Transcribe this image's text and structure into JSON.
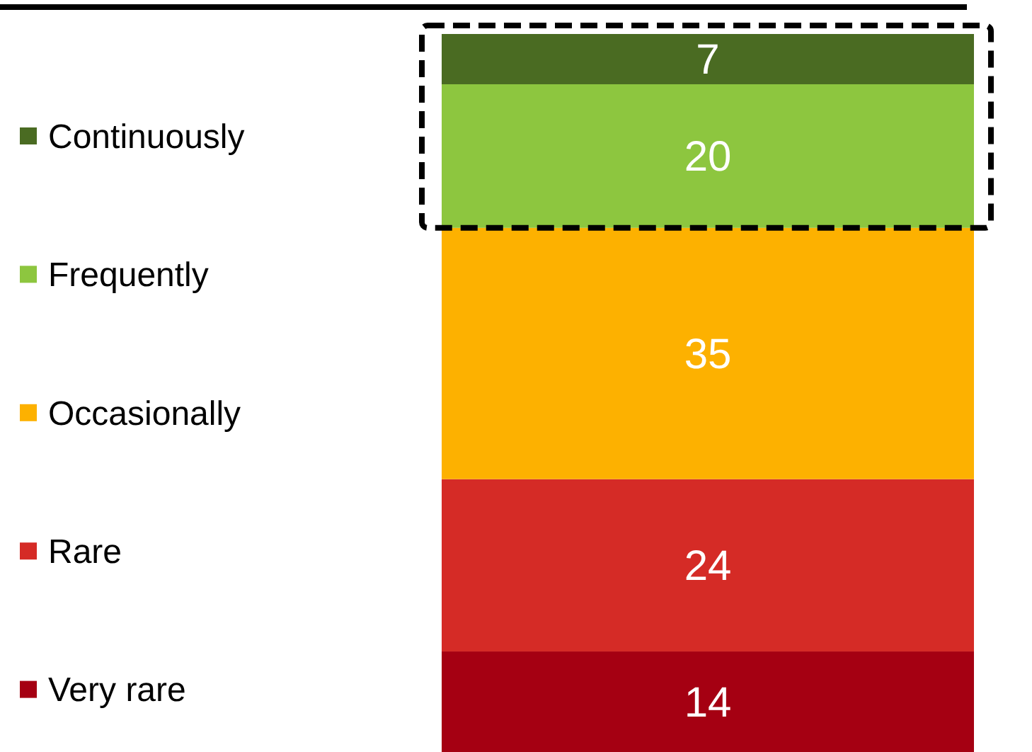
{
  "chart_data": {
    "type": "bar",
    "stacked": true,
    "categories": [
      null
    ],
    "data_labels": true,
    "legend": "left",
    "series": [
      {
        "name": "Very rare",
        "color": "#a50012",
        "values": [
          14
        ]
      },
      {
        "name": "Rare",
        "color": "#d52b26",
        "values": [
          24
        ]
      },
      {
        "name": "Occasionally",
        "color": "#fdb100",
        "values": [
          35
        ]
      },
      {
        "name": "Frequently",
        "color": "#8dc63f",
        "values": [
          20
        ]
      },
      {
        "name": "Continuously",
        "color": "#4a6b22",
        "values": [
          7
        ]
      }
    ]
  }
}
